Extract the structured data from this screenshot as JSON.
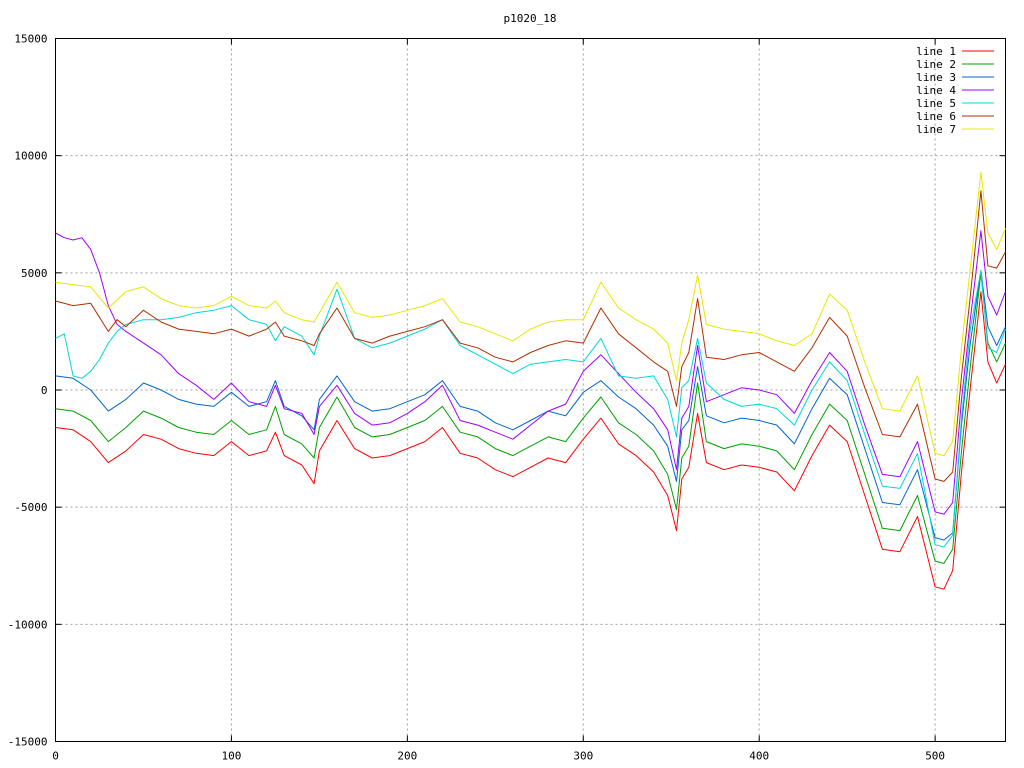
{
  "chart_data": {
    "type": "line",
    "title": "p1020_18",
    "xlabel": "",
    "ylabel": "",
    "xlim": [
      0,
      540
    ],
    "ylim": [
      -15000,
      15000
    ],
    "xticks": [
      0,
      100,
      200,
      300,
      400,
      500
    ],
    "yticks": [
      -15000,
      -10000,
      -5000,
      0,
      5000,
      10000,
      15000
    ],
    "grid": true,
    "legend_position": "top-right",
    "series": [
      {
        "name": "line 1",
        "color": "#ff0000",
        "x": [
          0,
          10,
          20,
          30,
          40,
          50,
          60,
          70,
          80,
          90,
          100,
          110,
          120,
          125,
          130,
          140,
          147,
          150,
          160,
          170,
          180,
          190,
          200,
          210,
          220,
          230,
          240,
          250,
          260,
          270,
          280,
          290,
          300,
          310,
          320,
          330,
          340,
          348,
          353,
          356,
          360,
          365,
          370,
          380,
          390,
          400,
          410,
          420,
          430,
          440,
          450,
          460,
          470,
          480,
          490,
          500,
          505,
          510,
          515,
          520,
          526,
          530,
          535,
          540
        ],
        "y": [
          -1600,
          -1700,
          -2200,
          -3100,
          -2600,
          -1900,
          -2100,
          -2500,
          -2700,
          -2800,
          -2200,
          -2800,
          -2600,
          -1800,
          -2800,
          -3200,
          -4000,
          -2600,
          -1300,
          -2500,
          -2900,
          -2800,
          -2500,
          -2200,
          -1600,
          -2700,
          -2900,
          -3400,
          -3700,
          -3300,
          -2900,
          -3100,
          -2100,
          -1200,
          -2300,
          -2800,
          -3500,
          -4500,
          -6000,
          -3800,
          -3300,
          -1000,
          -3100,
          -3400,
          -3200,
          -3300,
          -3500,
          -4300,
          -2800,
          -1500,
          -2200,
          -4500,
          -6800,
          -6900,
          -5400,
          -8400,
          -8500,
          -7700,
          -3500,
          100,
          4200,
          1200,
          300,
          1100
        ]
      },
      {
        "name": "line 2",
        "color": "#00a000",
        "x": [
          0,
          10,
          20,
          30,
          40,
          50,
          60,
          70,
          80,
          90,
          100,
          110,
          120,
          125,
          130,
          140,
          147,
          150,
          160,
          170,
          180,
          190,
          200,
          210,
          220,
          230,
          240,
          250,
          260,
          270,
          280,
          290,
          300,
          310,
          320,
          330,
          340,
          348,
          353,
          356,
          360,
          365,
          370,
          380,
          390,
          400,
          410,
          420,
          430,
          440,
          450,
          460,
          470,
          480,
          490,
          500,
          505,
          510,
          515,
          520,
          526,
          530,
          535,
          540
        ],
        "y": [
          -800,
          -900,
          -1300,
          -2200,
          -1600,
          -900,
          -1200,
          -1600,
          -1800,
          -1900,
          -1300,
          -1900,
          -1700,
          -700,
          -1900,
          -2300,
          -2900,
          -1600,
          -300,
          -1600,
          -2000,
          -1900,
          -1600,
          -1300,
          -700,
          -1800,
          -2000,
          -2500,
          -2800,
          -2400,
          -2000,
          -2200,
          -1200,
          -300,
          -1400,
          -1900,
          -2600,
          -3600,
          -5100,
          -2900,
          -2400,
          300,
          -2200,
          -2500,
          -2300,
          -2400,
          -2600,
          -3400,
          -1900,
          -600,
          -1300,
          -3600,
          -5900,
          -6000,
          -4500,
          -7300,
          -7400,
          -6800,
          -2600,
          1000,
          5000,
          2000,
          1200,
          2000
        ]
      },
      {
        "name": "line 3",
        "color": "#0066cc",
        "x": [
          0,
          10,
          20,
          30,
          40,
          50,
          60,
          70,
          80,
          90,
          100,
          110,
          120,
          125,
          130,
          140,
          147,
          150,
          160,
          170,
          180,
          190,
          200,
          210,
          220,
          230,
          240,
          250,
          260,
          270,
          280,
          290,
          300,
          310,
          320,
          330,
          340,
          348,
          353,
          356,
          360,
          365,
          370,
          380,
          390,
          400,
          410,
          420,
          430,
          440,
          450,
          460,
          470,
          480,
          490,
          500,
          505,
          510,
          515,
          520,
          526,
          530,
          535,
          540
        ],
        "y": [
          600,
          500,
          0,
          -900,
          -400,
          300,
          0,
          -400,
          -600,
          -700,
          -100,
          -700,
          -500,
          400,
          -700,
          -1100,
          -1700,
          -400,
          600,
          -500,
          -900,
          -800,
          -500,
          -200,
          400,
          -700,
          -900,
          -1400,
          -1700,
          -1300,
          -900,
          -1100,
          -100,
          400,
          -300,
          -800,
          -1500,
          -2400,
          -3900,
          -1700,
          -1300,
          1000,
          -1100,
          -1400,
          -1200,
          -1300,
          -1500,
          -2300,
          -800,
          500,
          -200,
          -2500,
          -4800,
          -4900,
          -3400,
          -6300,
          -6400,
          -6100,
          -1500,
          2000,
          5100,
          2700,
          1900,
          2700
        ]
      },
      {
        "name": "line 4",
        "color": "#a000ff",
        "x": [
          0,
          5,
          10,
          15,
          20,
          25,
          30,
          35,
          40,
          50,
          60,
          70,
          80,
          90,
          100,
          110,
          120,
          125,
          130,
          140,
          147,
          150,
          160,
          170,
          180,
          190,
          200,
          210,
          220,
          230,
          240,
          250,
          260,
          270,
          280,
          290,
          300,
          310,
          320,
          330,
          340,
          348,
          353,
          356,
          360,
          365,
          370,
          380,
          390,
          400,
          410,
          420,
          430,
          440,
          450,
          460,
          470,
          480,
          490,
          500,
          505,
          510,
          515,
          520,
          526,
          530,
          535,
          540
        ],
        "y": [
          6700,
          6500,
          6400,
          6500,
          6000,
          5000,
          3600,
          2800,
          2500,
          2000,
          1500,
          700,
          200,
          -400,
          300,
          -500,
          -700,
          200,
          -800,
          -1000,
          -1900,
          -700,
          200,
          -1000,
          -1500,
          -1400,
          -1000,
          -500,
          200,
          -1300,
          -1500,
          -1800,
          -2100,
          -1500,
          -900,
          -600,
          800,
          1500,
          700,
          -100,
          -800,
          -1700,
          -3400,
          -1200,
          -700,
          1900,
          -500,
          -200,
          100,
          0,
          -200,
          -1000,
          400,
          1600,
          800,
          -1500,
          -3600,
          -3700,
          -2200,
          -5200,
          -5300,
          -4800,
          -400,
          3000,
          6800,
          4000,
          3200,
          4200
        ]
      },
      {
        "name": "line 5",
        "color": "#00d8d8",
        "x": [
          0,
          5,
          10,
          15,
          20,
          25,
          30,
          35,
          40,
          50,
          60,
          70,
          80,
          90,
          100,
          110,
          120,
          125,
          130,
          140,
          147,
          150,
          160,
          170,
          180,
          190,
          200,
          210,
          220,
          230,
          240,
          250,
          260,
          270,
          280,
          290,
          300,
          310,
          320,
          330,
          340,
          348,
          353,
          356,
          360,
          365,
          370,
          380,
          390,
          400,
          410,
          420,
          430,
          440,
          450,
          460,
          470,
          480,
          490,
          500,
          505,
          510,
          515,
          520,
          526,
          530,
          535,
          540
        ],
        "y": [
          2200,
          2400,
          600,
          500,
          800,
          1300,
          2000,
          2500,
          2800,
          3000,
          3000,
          3100,
          3300,
          3400,
          3600,
          3000,
          2800,
          2100,
          2700,
          2300,
          1500,
          2300,
          4300,
          2200,
          1800,
          2000,
          2300,
          2600,
          3000,
          1900,
          1500,
          1100,
          700,
          1100,
          1200,
          1300,
          1200,
          2200,
          600,
          500,
          600,
          -400,
          -2000,
          100,
          400,
          2200,
          300,
          -400,
          -700,
          -600,
          -800,
          -1500,
          0,
          1200,
          400,
          -1900,
          -4100,
          -4200,
          -2700,
          -6600,
          -6700,
          -6200,
          -1200,
          2600,
          5100,
          1800,
          1600,
          2600
        ]
      },
      {
        "name": "line 6",
        "color": "#b03000",
        "x": [
          0,
          10,
          20,
          30,
          35,
          40,
          50,
          60,
          70,
          80,
          90,
          100,
          110,
          120,
          125,
          130,
          140,
          147,
          150,
          160,
          170,
          180,
          190,
          200,
          210,
          220,
          230,
          240,
          250,
          260,
          270,
          280,
          290,
          300,
          310,
          320,
          330,
          340,
          348,
          353,
          356,
          360,
          365,
          370,
          380,
          390,
          400,
          410,
          420,
          430,
          440,
          450,
          460,
          470,
          480,
          490,
          500,
          505,
          510,
          515,
          520,
          526,
          530,
          535,
          540
        ],
        "y": [
          3800,
          3600,
          3700,
          2500,
          3000,
          2700,
          3400,
          2900,
          2600,
          2500,
          2400,
          2600,
          2300,
          2600,
          2900,
          2300,
          2100,
          1900,
          2400,
          3500,
          2200,
          2000,
          2300,
          2500,
          2700,
          3000,
          2000,
          1800,
          1400,
          1200,
          1600,
          1900,
          2100,
          2000,
          3500,
          2400,
          1800,
          1200,
          800,
          -700,
          1000,
          1600,
          3900,
          1400,
          1300,
          1500,
          1600,
          1200,
          800,
          1800,
          3100,
          2300,
          100,
          -1900,
          -2000,
          -600,
          -3800,
          -3900,
          -3500,
          600,
          4000,
          8500,
          5300,
          5200,
          5900
        ]
      },
      {
        "name": "line 7",
        "color": "#e8e800",
        "x": [
          0,
          10,
          20,
          30,
          40,
          50,
          60,
          70,
          80,
          90,
          100,
          110,
          120,
          125,
          130,
          140,
          147,
          150,
          160,
          170,
          180,
          190,
          200,
          210,
          220,
          230,
          240,
          250,
          260,
          270,
          280,
          290,
          300,
          310,
          320,
          330,
          340,
          348,
          353,
          356,
          360,
          365,
          370,
          380,
          390,
          400,
          410,
          420,
          430,
          440,
          450,
          460,
          470,
          480,
          490,
          500,
          505,
          510,
          515,
          520,
          526,
          530,
          535,
          540
        ],
        "y": [
          4600,
          4500,
          4400,
          3500,
          4200,
          4400,
          3900,
          3600,
          3500,
          3600,
          4000,
          3600,
          3500,
          3800,
          3300,
          3000,
          2900,
          3300,
          4600,
          3300,
          3100,
          3200,
          3400,
          3600,
          3900,
          2900,
          2700,
          2400,
          2100,
          2600,
          2900,
          3000,
          3000,
          4600,
          3500,
          3000,
          2600,
          2000,
          400,
          2000,
          3000,
          4900,
          2800,
          2600,
          2500,
          2400,
          2100,
          1900,
          2400,
          4100,
          3400,
          1200,
          -800,
          -900,
          600,
          -2700,
          -2800,
          -2200,
          1800,
          5200,
          9300,
          6700,
          6000,
          6900
        ]
      }
    ]
  }
}
